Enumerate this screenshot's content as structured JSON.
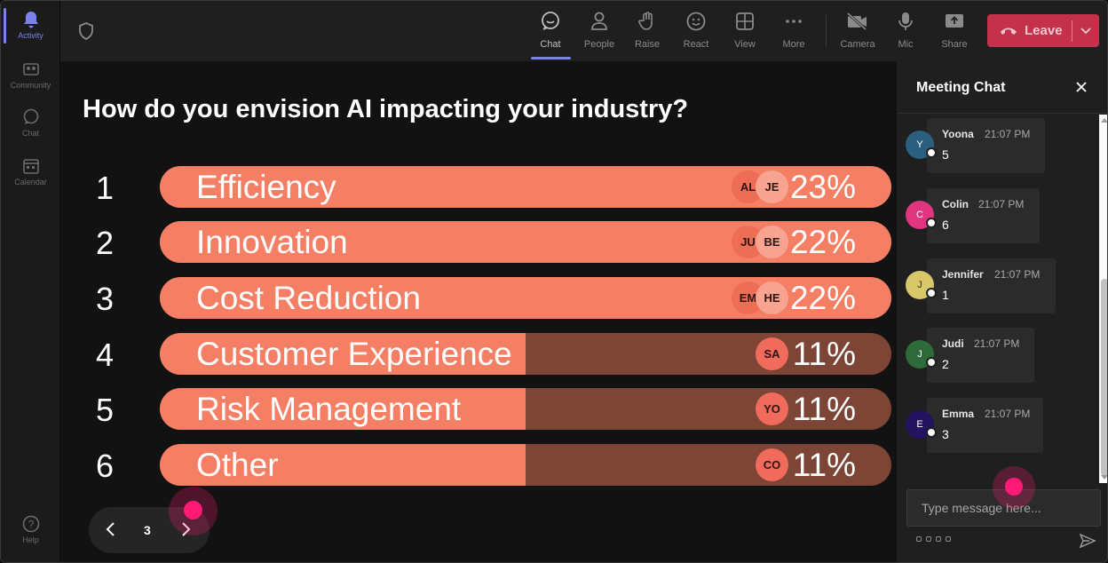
{
  "rail": {
    "items": [
      {
        "label": "Activity",
        "icon": "bell-icon",
        "active": true
      },
      {
        "label": "Community",
        "icon": "community-icon"
      },
      {
        "label": "Chat",
        "icon": "chat-icon"
      },
      {
        "label": "Calendar",
        "icon": "calendar-icon"
      }
    ],
    "help": {
      "label": "Help",
      "icon": "help-icon"
    }
  },
  "toolbar": {
    "buttons": [
      {
        "label": "Chat",
        "icon": "chat-icon",
        "active": true
      },
      {
        "label": "People",
        "icon": "people-icon"
      },
      {
        "label": "Raise",
        "icon": "raise-hand-icon"
      },
      {
        "label": "React",
        "icon": "emoji-icon"
      },
      {
        "label": "View",
        "icon": "grid-icon"
      },
      {
        "label": "More",
        "icon": "more-icon"
      },
      {
        "label": "Camera",
        "icon": "camera-off-icon"
      },
      {
        "label": "Mic",
        "icon": "mic-icon"
      },
      {
        "label": "Share",
        "icon": "share-icon"
      }
    ],
    "leave_label": "Leave"
  },
  "poll": {
    "question": "How do you envision AI impacting your industry?",
    "options": [
      {
        "rank": "1",
        "label": "Efficiency",
        "percent": "23%",
        "fill": 1.0,
        "voters": [
          "AL",
          "JE"
        ]
      },
      {
        "rank": "2",
        "label": "Innovation",
        "percent": "22%",
        "fill": 1.0,
        "voters": [
          "JU",
          "BE"
        ]
      },
      {
        "rank": "3",
        "label": "Cost Reduction",
        "percent": "22%",
        "fill": 1.0,
        "voters": [
          "EM",
          "HE"
        ]
      },
      {
        "rank": "4",
        "label": "Customer Experience",
        "percent": "11%",
        "fill": 0.5,
        "voters": [
          "SA"
        ]
      },
      {
        "rank": "5",
        "label": "Risk Management",
        "percent": "11%",
        "fill": 0.5,
        "voters": [
          "YO"
        ]
      },
      {
        "rank": "6",
        "label": "Other",
        "percent": "11%",
        "fill": 0.5,
        "voters": [
          "CO"
        ]
      }
    ],
    "page": "3"
  },
  "chat": {
    "title": "Meeting Chat",
    "messages": [
      {
        "initial": "Y",
        "name": "Yoona",
        "time": "21:07 PM",
        "text": "5",
        "color": "#2b5f7f"
      },
      {
        "initial": "C",
        "name": "Colin",
        "time": "21:07 PM",
        "text": "6",
        "color": "#e0367f"
      },
      {
        "initial": "J",
        "name": "Jennifer",
        "time": "21:07 PM",
        "text": "1",
        "color": "#d8c86a"
      },
      {
        "initial": "J",
        "name": "Judi",
        "time": "21:07 PM",
        "text": "2",
        "color": "#2f6b3a"
      },
      {
        "initial": "E",
        "name": "Emma",
        "time": "21:07 PM",
        "text": "3",
        "color": "#24135e"
      }
    ],
    "input_placeholder": "Type message here..."
  },
  "colors": {
    "bar_fill": "#f47f64",
    "bar_track": "#7d4536",
    "leave": "#c4314b",
    "accent": "#7b83eb"
  }
}
